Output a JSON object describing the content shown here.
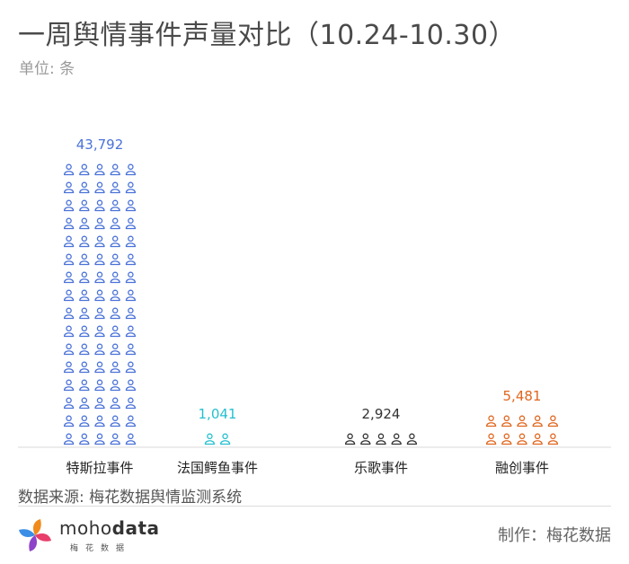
{
  "title": "一周舆情事件声量对比（10.24-10.30）",
  "unit_label": "单位: 条",
  "source": "数据来源: 梅花数据舆情监测系统",
  "credit": "制作：梅花数据",
  "logo": {
    "word_light": "moho",
    "word_bold": "data",
    "sub": "梅花数据"
  },
  "chart_data": {
    "type": "bar",
    "style": "pictogram",
    "icon": "person-icon",
    "categories": [
      "特斯拉事件",
      "法国鳄鱼事件",
      "乐歌事件",
      "融创事件"
    ],
    "values": [
      43792,
      1041,
      2924,
      5481
    ],
    "value_labels": [
      "43,792",
      "1,041",
      "2,924",
      "5,481"
    ],
    "colors": [
      "#4a72d8",
      "#24c0cf",
      "#333333",
      "#e0661e"
    ],
    "icons_shown": [
      80,
      2,
      5,
      10
    ],
    "title": "一周舆情事件声量对比（10.24-10.30）",
    "xlabel": "",
    "ylabel": "单位: 条",
    "grid": false,
    "legend": "none"
  }
}
